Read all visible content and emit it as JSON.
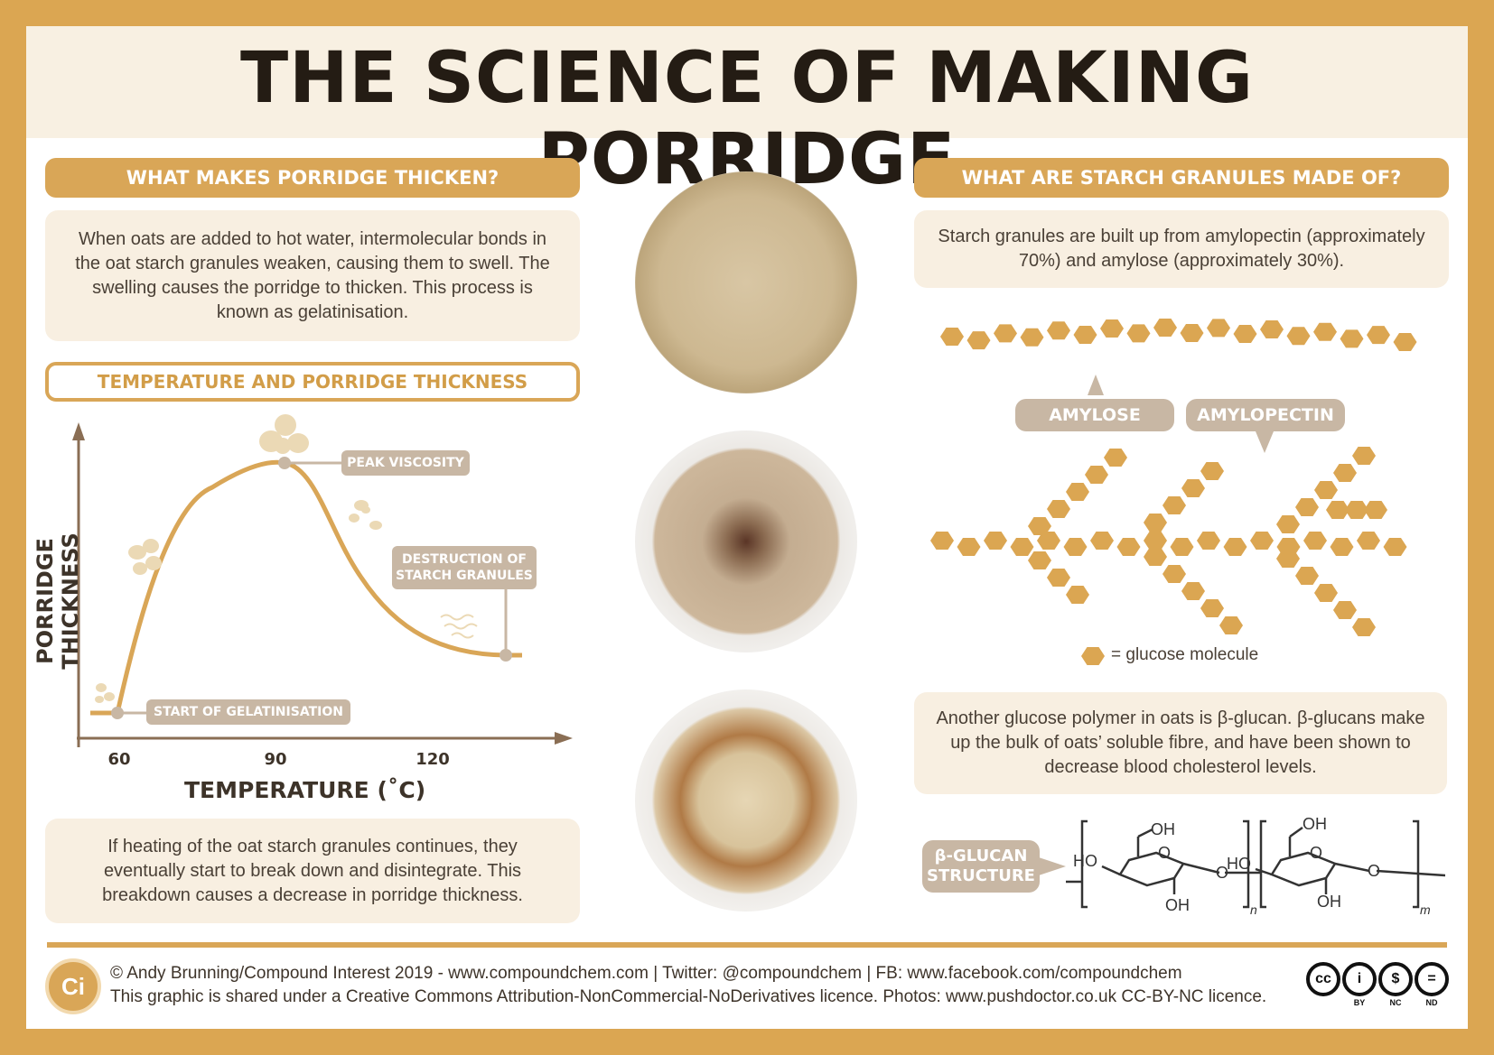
{
  "title": "THE SCIENCE OF MAKING PORRIDGE",
  "colors": {
    "frame": "#DBA652",
    "accent": "#D9A657",
    "box": "#F8EFE1",
    "tag": "#C8B7A4",
    "dark": "#241c14"
  },
  "left": {
    "header": "WHAT MAKES PORRIDGE THICKEN?",
    "intro": "When oats are added to hot water, intermolecular bonds in the oat starch granules weaken, causing them to swell. The swelling causes the porridge to thicken. This process is known as gelatinisation.",
    "graph_header": "TEMPERATURE AND PORRIDGE THICKNESS",
    "graph": {
      "ylabel": "PORRIDGE THICKNESS",
      "xlabel": "TEMPERATURE (˚C)",
      "xticks": [
        "60",
        "90",
        "120"
      ],
      "labels": {
        "peak": "PEAK VISCOSITY",
        "destruction_line1": "DESTRUCTION OF",
        "destruction_line2": "STARCH GRANULES",
        "start": "START OF GELATINISATION"
      }
    },
    "outro": "If heating of the oat starch granules continues, they eventually start to break down and disintegrate. This breakdown causes a decrease in porridge thickness."
  },
  "right": {
    "header": "WHAT ARE STARCH GRANULES MADE OF?",
    "intro": "Starch granules are built up from amylopectin (approximately 70%) and amylose (approximately 30%).",
    "amylose_label": "AMYLOSE",
    "amylopectin_label": "AMYLOPECTIN",
    "legend": "= glucose molecule",
    "glucan_text": "Another glucose polymer in oats is β-glucan. β-glucans make up the bulk of oats’ soluble fibre, and have been shown to decrease blood cholesterol levels.",
    "glucan_tag_line1": "β-GLUCAN",
    "glucan_tag_line2": "STRUCTURE",
    "structure": {
      "oh1": "OH",
      "oh2": "OH",
      "ho1": "HO",
      "ho2": "HO",
      "o": "O",
      "oh3": "OH",
      "oh4": "OH",
      "n": "n",
      "m": "m"
    }
  },
  "footer": {
    "logo": "Ci",
    "line1": "© Andy Brunning/Compound Interest 2019 - www.compoundchem.com | Twitter: @compoundchem | FB: www.facebook.com/compoundchem",
    "line2": "This graphic is shared under a Creative Commons Attribution-NonCommercial-NoDerivatives licence. Photos: www.pushdoctor.co.uk CC-BY-NC licence.",
    "cc_icons": [
      {
        "glyph": "cc",
        "label": ""
      },
      {
        "glyph": "i",
        "label": "BY"
      },
      {
        "glyph": "$",
        "label": "NC"
      },
      {
        "glyph": "=",
        "label": "ND"
      }
    ]
  }
}
